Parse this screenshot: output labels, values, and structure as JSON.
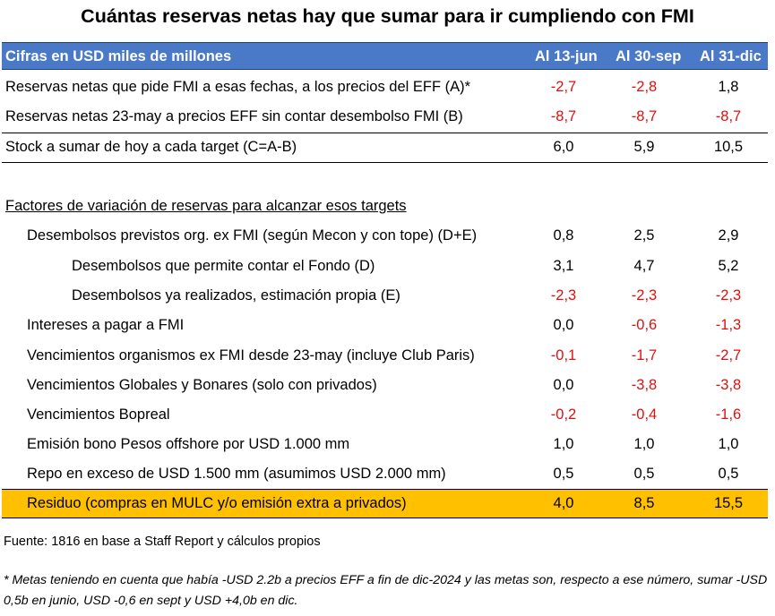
{
  "title": "Cuántas reservas netas hay que sumar para ir cumpliendo con FMI",
  "header": {
    "label": "Cifras en USD miles de millones",
    "cols": [
      "Al 13-jun",
      "Al 30-sep",
      "Al 31-dic"
    ]
  },
  "chart_data": {
    "type": "table",
    "columns": [
      "Al 13-jun",
      "Al 30-sep",
      "Al 31-dic"
    ],
    "rows": [
      {
        "label": "Reservas netas que pide FMI a esas fechas, a los precios del EFF (A)*",
        "values": [
          "-2,7",
          "-2,8",
          "1,8"
        ]
      },
      {
        "label": "Reservas netas 23-may a precios EFF sin contar desembolso FMI (B)",
        "values": [
          "-8,7",
          "-8,7",
          "-8,7"
        ]
      },
      {
        "label": "Stock a sumar de hoy a cada target (C=A-B)",
        "values": [
          "6,0",
          "5,9",
          "10,5"
        ]
      },
      {
        "label": "Factores de variación de reservas para alcanzar esos targets",
        "values": []
      },
      {
        "label": "Desembolsos previstos org. ex FMI (según Mecon y con tope) (D+E)",
        "values": [
          "0,8",
          "2,5",
          "2,9"
        ]
      },
      {
        "label": "Desembolsos que permite contar el Fondo (D)",
        "values": [
          "3,1",
          "4,7",
          "5,2"
        ]
      },
      {
        "label": "Desembolsos ya realizados, estimación propia (E)",
        "values": [
          "-2,3",
          "-2,3",
          "-2,3"
        ]
      },
      {
        "label": "Intereses a pagar a FMI",
        "values": [
          "0,0",
          "-0,6",
          "-1,3"
        ]
      },
      {
        "label": "Vencimientos organismos ex FMI desde 23-may (incluye Club Paris)",
        "values": [
          "-0,1",
          "-1,7",
          "-2,7"
        ]
      },
      {
        "label": "Vencimientos Globales y Bonares (solo con privados)",
        "values": [
          "0,0",
          "-3,8",
          "-3,8"
        ]
      },
      {
        "label": "Vencimientos Bopreal",
        "values": [
          "-0,2",
          "-0,4",
          "-1,6"
        ]
      },
      {
        "label": "Emisión bono Pesos offshore por USD 1.000 mm",
        "values": [
          "1,0",
          "1,0",
          "1,0"
        ]
      },
      {
        "label": "Repo en exceso de USD 1.500 mm (asumimos USD 2.000 mm)",
        "values": [
          "0,5",
          "0,5",
          "0,5"
        ]
      },
      {
        "label": "Residuo (compras en MULC y/o emisión extra a privados)",
        "values": [
          "4,0",
          "8,5",
          "15,5"
        ]
      }
    ],
    "colors": {
      "header_bg": "#4a7ac7",
      "negative": "#e01010",
      "highlight": "#ffc000"
    }
  },
  "source": "Fuente: 1816 en base a Staff Report y cálculos propios",
  "footnote": "* Metas teniendo en cuenta que había -USD 2.2b a precios EFF a fin de dic-2024 y las metas son, respecto a ese número, sumar -USD 0,5b en junio, USD -0,6 en sept y USD +4,0b en dic."
}
